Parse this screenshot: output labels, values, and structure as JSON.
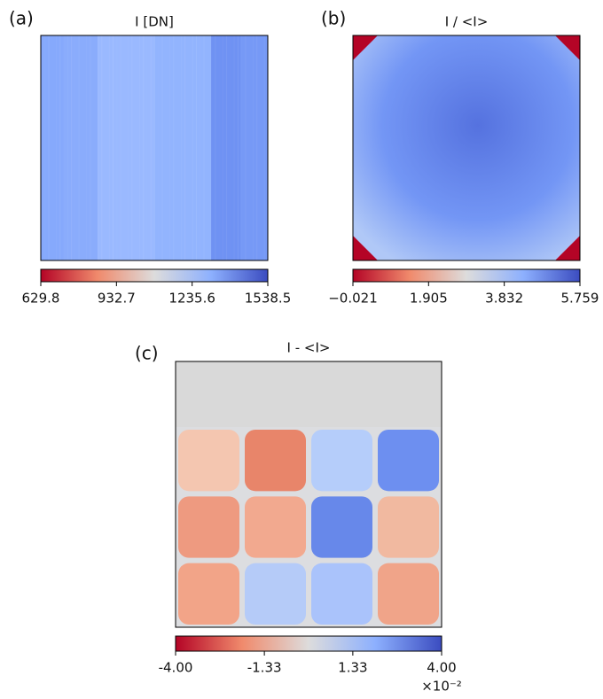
{
  "chart_data": [
    {
      "type": "image",
      "panel_label": "(a)",
      "title": "I [DN]",
      "colorbar": {
        "lim": [
          629.8,
          1538.5
        ],
        "ticks": [
          629.8,
          932.7,
          1235.6,
          1538.5
        ]
      }
    },
    {
      "type": "image",
      "panel_label": "(b)",
      "title": "I / <I>",
      "colorbar": {
        "lim": [
          -0.021,
          5.759
        ],
        "ticks": [
          {
            "value": -0.021,
            "label": "−0.021"
          },
          1.905,
          3.832,
          5.759
        ]
      }
    },
    {
      "type": "image",
      "panel_label": "(c)",
      "title": "I - <I>",
      "colorbar": {
        "lim": [
          -4,
          4
        ],
        "ticks": [
          {
            "value": -4,
            "label": "-4.00"
          },
          {
            "value": -1.33,
            "label": "-1.33"
          },
          {
            "value": 1.33,
            "label": "1.33"
          },
          {
            "value": 4,
            "label": "4.00"
          }
        ],
        "offset_label": "×10⁻²"
      }
    }
  ]
}
